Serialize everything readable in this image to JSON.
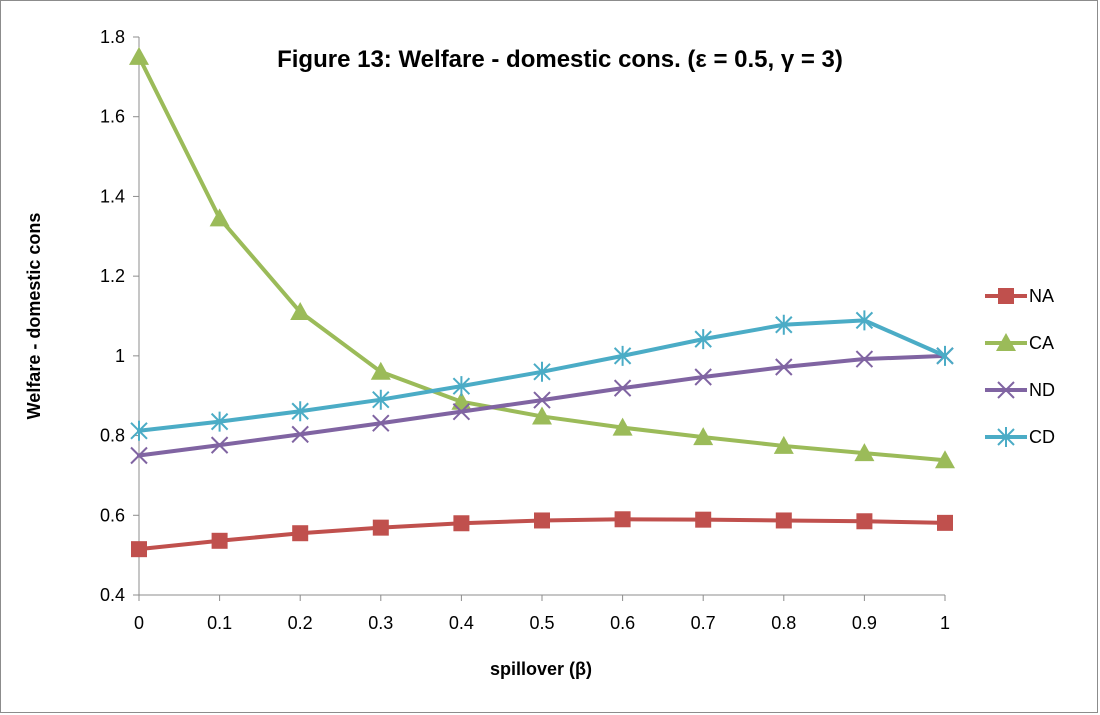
{
  "chart_data": {
    "type": "line",
    "title": "Figure 13: Welfare - domestic cons. (ε = 0.5, γ = 3)",
    "xlabel": "spillover (β)",
    "ylabel": "Welfare - domestic cons",
    "x": [
      0,
      0.1,
      0.2,
      0.3,
      0.4,
      0.5,
      0.6,
      0.7,
      0.8,
      0.9,
      1
    ],
    "x_tick_labels": [
      "0",
      "0.1",
      "0.2",
      "0.3",
      "0.4",
      "0.5",
      "0.6",
      "0.7",
      "0.8",
      "0.9",
      "1"
    ],
    "y_tick_values": [
      0.4,
      0.6,
      0.8,
      1.0,
      1.2,
      1.4,
      1.6,
      1.8
    ],
    "y_tick_labels": [
      "0.4",
      "0.6",
      "0.8",
      "1",
      "1.2",
      "1.4",
      "1.6",
      "1.8"
    ],
    "ylim": [
      0.4,
      1.8
    ],
    "grid": false,
    "legend_position": "right",
    "series": [
      {
        "name": "NA",
        "color": "#c0504d",
        "marker": "square",
        "values": [
          0.515,
          0.536,
          0.555,
          0.569,
          0.58,
          0.587,
          0.59,
          0.589,
          0.587,
          0.585,
          0.581
        ]
      },
      {
        "name": "CA",
        "color": "#9bbb59",
        "marker": "triangle",
        "values": [
          1.75,
          1.345,
          1.11,
          0.96,
          0.885,
          0.848,
          0.82,
          0.796,
          0.774,
          0.756,
          0.738
        ]
      },
      {
        "name": "ND",
        "color": "#8064a2",
        "marker": "x",
        "values": [
          0.75,
          0.776,
          0.803,
          0.831,
          0.86,
          0.889,
          0.919,
          0.947,
          0.972,
          0.992,
          1.0
        ]
      },
      {
        "name": "CD",
        "color": "#4bacc6",
        "marker": "star",
        "values": [
          0.812,
          0.835,
          0.861,
          0.89,
          0.924,
          0.96,
          1.0,
          1.042,
          1.078,
          1.089,
          1.0
        ]
      }
    ]
  }
}
